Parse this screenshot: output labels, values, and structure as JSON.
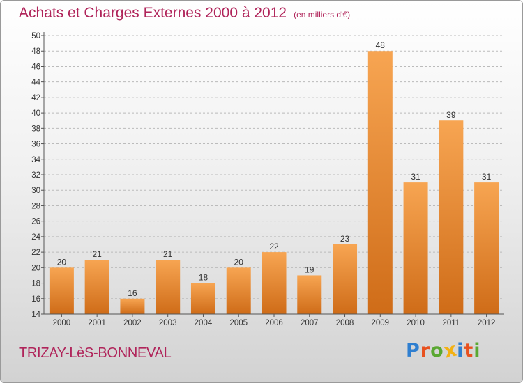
{
  "colors": {
    "title": "#b0245a",
    "bar_light": "#f7a552",
    "bar_dark": "#cf6c18",
    "axis": "#555555",
    "grid": "#bbbbbb"
  },
  "footer": {
    "place": "TRIZAY-LèS-BONNEVAL"
  },
  "logo": {
    "text": "Proxiti",
    "letters": [
      {
        "char": "P",
        "color": "#2f7fd0"
      },
      {
        "char": "r",
        "color": "#e8511f"
      },
      {
        "char": "o",
        "color": "#5aa832"
      },
      {
        "char": "x",
        "color": "#f3b114"
      },
      {
        "char": "i",
        "color": "#2f7fd0"
      },
      {
        "char": "t",
        "color": "#e8511f"
      },
      {
        "char": "i",
        "color": "#5aa832"
      }
    ]
  },
  "chart_data": {
    "type": "bar",
    "title": "Achats et Charges Externes 2000 à 2012",
    "subtitle": "(en milliers d'€)",
    "xlabel": "",
    "ylabel": "",
    "categories": [
      "2000",
      "2001",
      "2002",
      "2003",
      "2004",
      "2005",
      "2006",
      "2007",
      "2008",
      "2009",
      "2010",
      "2011",
      "2012"
    ],
    "values": [
      20,
      21,
      16,
      21,
      18,
      20,
      22,
      19,
      23,
      48,
      31,
      39,
      31
    ],
    "ylim": [
      14,
      50
    ],
    "yticks": [
      14,
      16,
      18,
      20,
      22,
      24,
      26,
      28,
      30,
      32,
      34,
      36,
      38,
      40,
      42,
      44,
      46,
      48,
      50
    ],
    "grid": true,
    "legend": "none"
  }
}
